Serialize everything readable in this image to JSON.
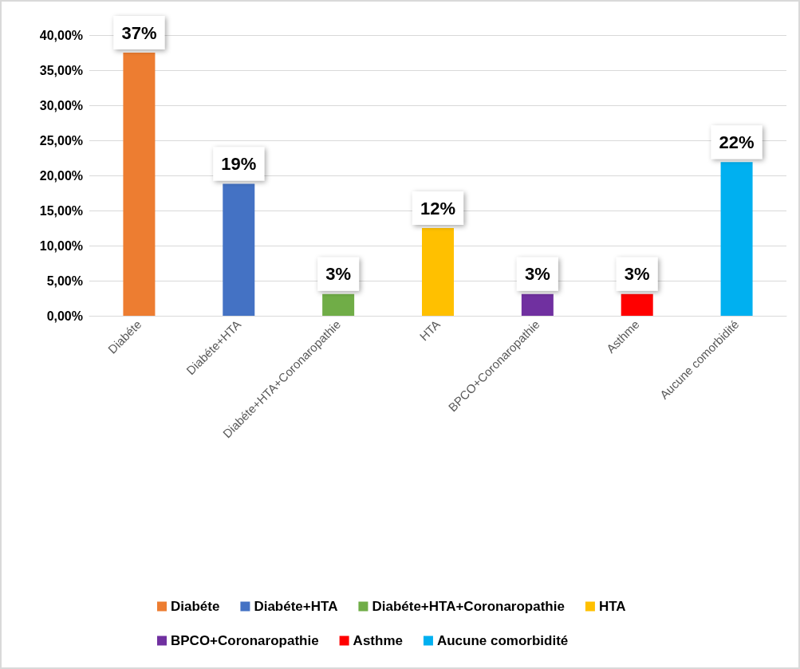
{
  "chart_data": {
    "type": "bar",
    "categories": [
      "Diabéte",
      "Diabéte+HTA",
      "Diabéte+HTA+Coronaropathie",
      "HTA",
      "BPCO+Coronaropathie",
      "Asthme",
      "Aucune comorbidité"
    ],
    "series": [
      {
        "name": "Diabéte",
        "color": "#ed7d31",
        "values": [
          37.5,
          null,
          null,
          null,
          null,
          null,
          null
        ],
        "value_labels": [
          "37%",
          null,
          null,
          null,
          null,
          null,
          null
        ]
      },
      {
        "name": "Diabéte+HTA",
        "color": "#4472c4",
        "values": [
          null,
          18.8,
          null,
          null,
          null,
          null,
          null
        ],
        "value_labels": [
          null,
          "19%",
          null,
          null,
          null,
          null,
          null
        ]
      },
      {
        "name": "Diabéte+HTA+Coronaropathie",
        "color": "#70ad47",
        "values": [
          null,
          null,
          3.1,
          null,
          null,
          null,
          null
        ],
        "value_labels": [
          null,
          null,
          "3%",
          null,
          null,
          null,
          null
        ]
      },
      {
        "name": "HTA",
        "color": "#ffc000",
        "values": [
          null,
          null,
          null,
          12.5,
          null,
          null,
          null
        ],
        "value_labels": [
          null,
          null,
          null,
          "12%",
          null,
          null,
          null
        ]
      },
      {
        "name": "BPCO+Coronaropathie",
        "color": "#7030a0",
        "values": [
          null,
          null,
          null,
          null,
          3.1,
          null,
          null
        ],
        "value_labels": [
          null,
          null,
          null,
          null,
          "3%",
          null,
          null
        ]
      },
      {
        "name": "Asthme",
        "color": "#ff0000",
        "values": [
          null,
          null,
          null,
          null,
          null,
          3.1,
          null
        ],
        "value_labels": [
          null,
          null,
          null,
          null,
          null,
          "3%",
          null
        ]
      },
      {
        "name": "Aucune comorbidité",
        "color": "#00b0f0",
        "values": [
          null,
          null,
          null,
          null,
          null,
          null,
          21.9
        ],
        "value_labels": [
          null,
          null,
          null,
          null,
          null,
          null,
          "22%"
        ]
      }
    ],
    "ylim": [
      0,
      40
    ],
    "yticks": [
      {
        "value": 0,
        "label": "0,00%"
      },
      {
        "value": 5,
        "label": "5,00%"
      },
      {
        "value": 10,
        "label": "10,00%"
      },
      {
        "value": 15,
        "label": "15,00%"
      },
      {
        "value": 20,
        "label": "20,00%"
      },
      {
        "value": 25,
        "label": "25,00%"
      },
      {
        "value": 30,
        "label": "30,00%"
      },
      {
        "value": 35,
        "label": "35,00%"
      },
      {
        "value": 40,
        "label": "40,00%"
      }
    ],
    "grid": "y",
    "stacked": true,
    "legend": "bottom"
  }
}
